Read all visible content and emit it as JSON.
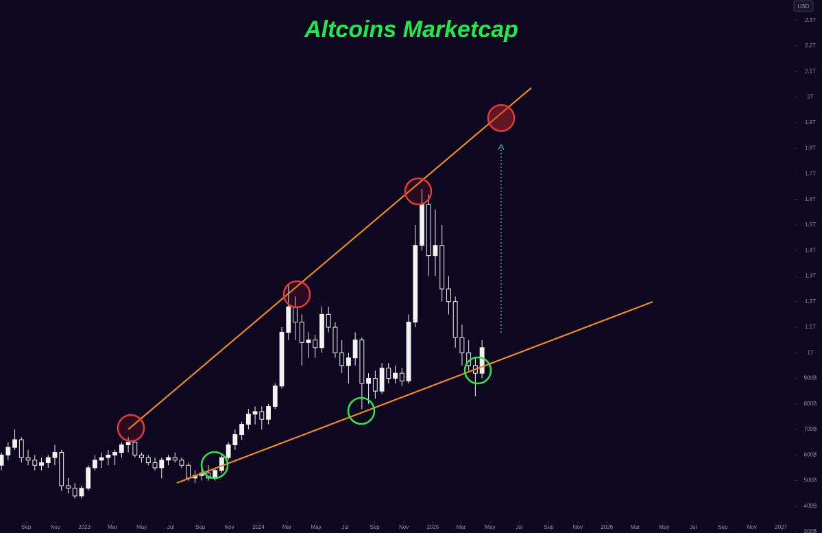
{
  "chart_data": {
    "type": "candlestick",
    "title": "Altcoins Marketcap",
    "currency": "USD",
    "color": "#f2f2f2",
    "x": [
      "2022-07-11",
      "2022-07-25",
      "2022-08-08",
      "2022-08-22",
      "2022-09-05",
      "2022-09-19",
      "2022-10-03",
      "2022-10-17",
      "2022-10-31",
      "2022-11-14",
      "2022-11-28",
      "2022-12-12",
      "2022-12-26",
      "2023-01-09",
      "2023-01-23",
      "2023-02-06",
      "2023-02-20",
      "2023-03-06",
      "2023-03-20",
      "2023-04-03",
      "2023-04-17",
      "2023-05-01",
      "2023-05-15",
      "2023-05-29",
      "2023-06-12",
      "2023-06-26",
      "2023-07-10",
      "2023-07-24",
      "2023-08-07",
      "2023-08-21",
      "2023-09-04",
      "2023-09-18",
      "2023-10-02",
      "2023-10-16",
      "2023-10-30",
      "2023-11-13",
      "2023-11-27",
      "2023-12-11",
      "2023-12-25",
      "2024-01-08",
      "2024-01-22",
      "2024-02-05",
      "2024-02-19",
      "2024-03-04",
      "2024-03-18",
      "2024-04-01",
      "2024-04-15",
      "2024-04-29",
      "2024-05-13",
      "2024-05-27",
      "2024-06-10",
      "2024-06-24",
      "2024-07-08",
      "2024-07-22",
      "2024-08-05",
      "2024-08-19",
      "2024-09-02",
      "2024-09-16",
      "2024-09-30",
      "2024-10-14",
      "2024-10-28",
      "2024-11-11",
      "2024-11-25",
      "2024-12-09",
      "2024-12-23",
      "2025-01-06",
      "2025-01-20",
      "2025-02-03",
      "2025-02-17",
      "2025-03-03",
      "2025-03-17",
      "2025-03-31",
      "2025-04-14"
    ],
    "open": [
      560,
      600,
      630,
      660,
      590,
      580,
      560,
      570,
      590,
      610,
      480,
      470,
      440,
      470,
      550,
      580,
      590,
      600,
      610,
      640,
      650,
      600,
      590,
      570,
      550,
      580,
      590,
      580,
      560,
      510,
      520,
      530,
      510,
      540,
      590,
      640,
      680,
      720,
      760,
      770,
      740,
      790,
      870,
      1080,
      1180,
      1120,
      1040,
      1050,
      1020,
      1150,
      1100,
      1000,
      950,
      980,
      1050,
      880,
      900,
      850,
      940,
      900,
      920,
      890,
      1120,
      1420,
      1580,
      1380,
      1420,
      1250,
      1200,
      1060,
      1000,
      950,
      920
    ],
    "high": [
      610,
      650,
      700,
      670,
      620,
      600,
      590,
      600,
      640,
      620,
      510,
      490,
      480,
      560,
      600,
      610,
      620,
      620,
      650,
      670,
      660,
      610,
      600,
      590,
      590,
      600,
      610,
      590,
      570,
      540,
      550,
      560,
      550,
      600,
      650,
      700,
      730,
      780,
      790,
      790,
      800,
      880,
      1100,
      1270,
      1220,
      1150,
      1080,
      1070,
      1180,
      1180,
      1120,
      1050,
      1000,
      1080,
      1060,
      920,
      930,
      960,
      960,
      950,
      940,
      1150,
      1500,
      1640,
      1620,
      1560,
      1500,
      1300,
      1220,
      1110,
      1050,
      980,
      1050
    ],
    "low": [
      540,
      580,
      620,
      570,
      560,
      540,
      540,
      550,
      560,
      460,
      450,
      430,
      430,
      460,
      540,
      550,
      560,
      560,
      590,
      610,
      590,
      570,
      560,
      540,
      510,
      560,
      570,
      550,
      500,
      490,
      500,
      500,
      500,
      530,
      580,
      620,
      660,
      700,
      720,
      700,
      720,
      780,
      860,
      1050,
      1050,
      950,
      980,
      980,
      1000,
      1080,
      980,
      920,
      880,
      950,
      780,
      800,
      820,
      840,
      880,
      880,
      870,
      880,
      1100,
      1400,
      1300,
      1300,
      1200,
      1150,
      1020,
      950,
      930,
      830,
      900
    ],
    "close": [
      600,
      630,
      660,
      590,
      580,
      560,
      570,
      590,
      610,
      480,
      470,
      440,
      470,
      550,
      580,
      590,
      600,
      610,
      640,
      650,
      600,
      590,
      570,
      550,
      580,
      590,
      580,
      560,
      510,
      520,
      530,
      510,
      540,
      590,
      640,
      680,
      720,
      760,
      770,
      740,
      790,
      870,
      1080,
      1180,
      1120,
      1040,
      1050,
      1020,
      1150,
      1100,
      1000,
      950,
      980,
      1050,
      880,
      900,
      850,
      940,
      900,
      920,
      890,
      1120,
      1420,
      1580,
      1380,
      1420,
      1250,
      1200,
      1060,
      1000,
      950,
      920,
      1020
    ],
    "xlim": [
      "2022-07-08",
      "2027-03-28"
    ],
    "xticks": [
      {
        "value": "2022-09-01",
        "label": "Sep"
      },
      {
        "value": "2022-11-01",
        "label": "Nov"
      },
      {
        "value": "2023-01-01",
        "label": "2023"
      },
      {
        "value": "2023-03-01",
        "label": "Mar"
      },
      {
        "value": "2023-05-01",
        "label": "May"
      },
      {
        "value": "2023-07-01",
        "label": "Jul"
      },
      {
        "value": "2023-09-01",
        "label": "Sep"
      },
      {
        "value": "2023-11-01",
        "label": "Nov"
      },
      {
        "value": "2024-01-01",
        "label": "2024"
      },
      {
        "value": "2024-03-01",
        "label": "Mar"
      },
      {
        "value": "2024-05-01",
        "label": "May"
      },
      {
        "value": "2024-07-01",
        "label": "Jul"
      },
      {
        "value": "2024-09-01",
        "label": "Sep"
      },
      {
        "value": "2024-11-01",
        "label": "Nov"
      },
      {
        "value": "2025-01-01",
        "label": "2025"
      },
      {
        "value": "2025-03-01",
        "label": "Mar"
      },
      {
        "value": "2025-05-01",
        "label": "May"
      },
      {
        "value": "2025-07-01",
        "label": "Jul"
      },
      {
        "value": "2025-09-01",
        "label": "Sep"
      },
      {
        "value": "2025-11-01",
        "label": "Nov"
      },
      {
        "value": "2026-01-01",
        "label": "2026"
      },
      {
        "value": "2026-03-01",
        "label": "Mar"
      },
      {
        "value": "2026-05-01",
        "label": "May"
      },
      {
        "value": "2026-07-01",
        "label": "Jul"
      },
      {
        "value": "2026-09-01",
        "label": "Sep"
      },
      {
        "value": "2026-11-01",
        "label": "Nov"
      },
      {
        "value": "2027-01-01",
        "label": "2027"
      }
    ],
    "ylim": [
      295,
      2380
    ],
    "yticks": [
      {
        "value": 300,
        "label": "300B"
      },
      {
        "value": 400,
        "label": "400B"
      },
      {
        "value": 500,
        "label": "500B"
      },
      {
        "value": 600,
        "label": "600B"
      },
      {
        "value": 700,
        "label": "700B"
      },
      {
        "value": 800,
        "label": "800B"
      },
      {
        "value": 900,
        "label": "900B"
      },
      {
        "value": 1000,
        "label": "1T"
      },
      {
        "value": 1100,
        "label": "1.1T"
      },
      {
        "value": 1200,
        "label": "1.2T"
      },
      {
        "value": 1300,
        "label": "1.3T"
      },
      {
        "value": 1400,
        "label": "1.4T"
      },
      {
        "value": 1500,
        "label": "1.5T"
      },
      {
        "value": 1600,
        "label": "1.6T"
      },
      {
        "value": 1700,
        "label": "1.7T"
      },
      {
        "value": 1800,
        "label": "1.8T"
      },
      {
        "value": 1900,
        "label": "1.9T"
      },
      {
        "value": 2000,
        "label": "2T"
      },
      {
        "value": 2100,
        "label": "2.1T"
      },
      {
        "value": 2200,
        "label": "2.2T"
      },
      {
        "value": 2300,
        "label": "2.3T"
      }
    ]
  }
}
